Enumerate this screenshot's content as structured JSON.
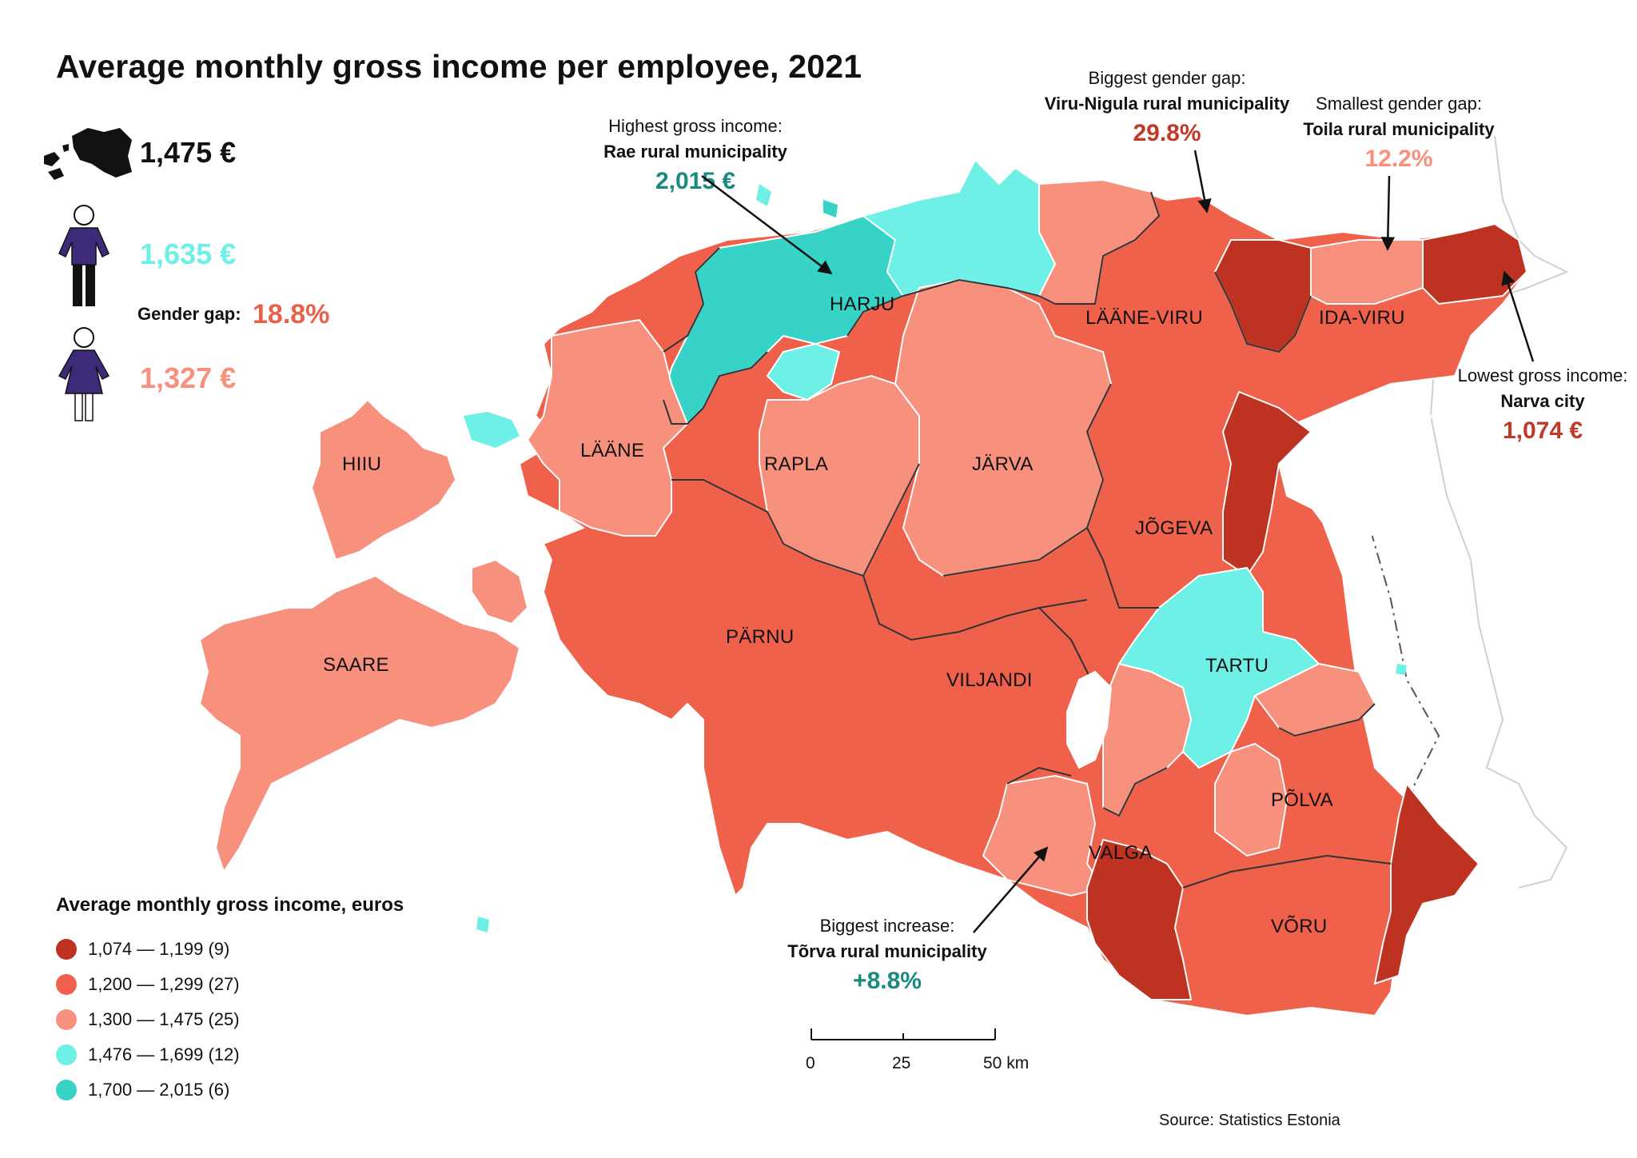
{
  "title": "Average monthly gross income per employee, 2021",
  "summary": {
    "total_value": "1,475 €",
    "men_value": "1,635 €",
    "gender_gap_label": "Gender gap:",
    "gender_gap_value": "18.8%",
    "women_value": "1,327 €"
  },
  "icons": {
    "country": "estonia-silhouette-icon",
    "man": "man-figure-icon",
    "woman": "woman-figure-icon"
  },
  "annotations": {
    "highest": {
      "label": "Highest gross income:",
      "name": "Rae rural municipality",
      "value": "2,015 €"
    },
    "biggest_gap": {
      "label": "Biggest gender gap:",
      "name": "Viru-Nigula rural municipality",
      "value": "29.8%"
    },
    "smallest_gap": {
      "label": "Smallest gender gap:",
      "name": "Toila rural municipality",
      "value": "12.2%"
    },
    "lowest": {
      "label": "Lowest gross income:",
      "name": "Narva city",
      "value": "1,074 €"
    },
    "increase": {
      "label": "Biggest increase:",
      "name": "Tõrva rural municipality",
      "value": "+8.8%"
    }
  },
  "counties": [
    {
      "name": "HARJU",
      "bin": 4
    },
    {
      "name": "LÄÄNE-VIRU",
      "bin": 2
    },
    {
      "name": "IDA-VIRU",
      "bin": 2
    },
    {
      "name": "HIIU",
      "bin": 3
    },
    {
      "name": "LÄÄNE",
      "bin": 3
    },
    {
      "name": "RAPLA",
      "bin": 3
    },
    {
      "name": "JÄRVA",
      "bin": 3
    },
    {
      "name": "JÕGEVA",
      "bin": 2
    },
    {
      "name": "SAARE",
      "bin": 3
    },
    {
      "name": "PÄRNU",
      "bin": 2
    },
    {
      "name": "VILJANDI",
      "bin": 2
    },
    {
      "name": "TARTU",
      "bin": 4
    },
    {
      "name": "PÕLVA",
      "bin": 2
    },
    {
      "name": "VALGA",
      "bin": 2
    },
    {
      "name": "VÕRU",
      "bin": 2
    }
  ],
  "legend": {
    "title": "Average monthly gross income, euros",
    "items": [
      {
        "label": "1,074 — 1,199 (9)",
        "color": "#be3222"
      },
      {
        "label": "1,200 — 1,299 (27)",
        "color": "#f0614b"
      },
      {
        "label": "1,300 — 1,475 (25)",
        "color": "#f7917d"
      },
      {
        "label": "1,476 — 1,699 (12)",
        "color": "#6ff0e6"
      },
      {
        "label": "1,700 — 2,015 (6)",
        "color": "#37d3c6"
      }
    ]
  },
  "colors": {
    "accent_teal": "#1a8a7f",
    "accent_dark_red": "#c13a28",
    "accent_red": "#e8614a",
    "accent_salmon": "#f7917d",
    "accent_cyan": "#6ff0e6",
    "figure_purple": "#3d2b7a"
  },
  "scale_bar": {
    "ticks": [
      "0",
      "25",
      "50 km"
    ]
  },
  "source": "Source: Statistics Estonia"
}
